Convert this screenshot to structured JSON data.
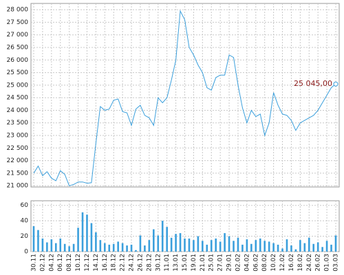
{
  "chart_data": [
    {
      "type": "line",
      "color": "#3a9fdc",
      "annotation": "25 045,00",
      "annotation_color": "#8b1a1a",
      "values": [
        21500,
        21780,
        21400,
        21560,
        21300,
        21200,
        21600,
        21450,
        21000,
        21050,
        21150,
        21150,
        21100,
        21120,
        22700,
        24150,
        24000,
        24050,
        24400,
        24450,
        23950,
        23900,
        23400,
        24050,
        24200,
        23800,
        23700,
        23400,
        24500,
        24300,
        24500,
        25200,
        26000,
        27950,
        27600,
        26500,
        26200,
        25800,
        25500,
        24900,
        24800,
        25300,
        25400,
        25400,
        26200,
        26100,
        25000,
        24100,
        23500,
        24000,
        23750,
        23850,
        23000,
        23500,
        24700,
        24200,
        23850,
        23800,
        23600,
        23200,
        23500,
        23600,
        23700,
        23800,
        24000,
        24300,
        24600,
        24900,
        25045
      ],
      "ylim": [
        20950,
        28250
      ],
      "yticks": [
        {
          "value": 21000,
          "label": "21 000"
        },
        {
          "value": 21500,
          "label": "21 500"
        },
        {
          "value": 22000,
          "label": "22 000"
        },
        {
          "value": 22500,
          "label": "22 500"
        },
        {
          "value": 23000,
          "label": "23 000"
        },
        {
          "value": 23500,
          "label": "23 500"
        },
        {
          "value": 24000,
          "label": "24 000"
        },
        {
          "value": 24500,
          "label": "24 500"
        },
        {
          "value": 25000,
          "label": "25 000"
        },
        {
          "value": 25500,
          "label": "25 500"
        },
        {
          "value": 26000,
          "label": "26 000"
        },
        {
          "value": 26500,
          "label": "26 500"
        },
        {
          "value": 27000,
          "label": "27 000"
        },
        {
          "value": 27500,
          "label": "27 500"
        },
        {
          "value": 28000,
          "label": "28 000"
        }
      ],
      "grid": true
    },
    {
      "type": "bar",
      "color": "#3a9fdc",
      "categories": [
        "30.11",
        null,
        "02.12",
        null,
        "04.12",
        null,
        "06.12",
        null,
        "08.12",
        null,
        "10.12",
        null,
        "12.12",
        null,
        "14.12",
        null,
        "16.12",
        null,
        "18.12",
        null,
        "22.12",
        null,
        "24.12",
        null,
        "26.12",
        null,
        "28.12",
        null,
        "30.12",
        null,
        "11.01",
        null,
        "13.01",
        null,
        "15.01",
        null,
        "19.01",
        null,
        "21.01",
        null,
        "25.01",
        null,
        "27.01",
        null,
        "29.01",
        null,
        "02.02",
        null,
        "04.02",
        null,
        "06.02",
        null,
        "08.02",
        null,
        "10.02",
        null,
        "12.02",
        null,
        "16.02",
        null,
        "18.02",
        null,
        "24.02",
        null,
        "26.02",
        null,
        "01.03",
        null,
        "03.03"
      ],
      "values": [
        33,
        28,
        17,
        12,
        16,
        11,
        17,
        10,
        7,
        10,
        31,
        51,
        48,
        37,
        25,
        15,
        11,
        9,
        10,
        13,
        11,
        8,
        9,
        2,
        21,
        8,
        15,
        29,
        21,
        40,
        32,
        18,
        23,
        24,
        17,
        17,
        15,
        20,
        14,
        9,
        15,
        17,
        13,
        24,
        20,
        14,
        18,
        9,
        16,
        10,
        15,
        17,
        14,
        13,
        11,
        9,
        4,
        16,
        8,
        3,
        15,
        11,
        18,
        10,
        12,
        6,
        14,
        9,
        21
      ],
      "ylim": [
        0,
        66
      ],
      "yticks": [
        0,
        20,
        40,
        60
      ],
      "grid": true
    }
  ]
}
